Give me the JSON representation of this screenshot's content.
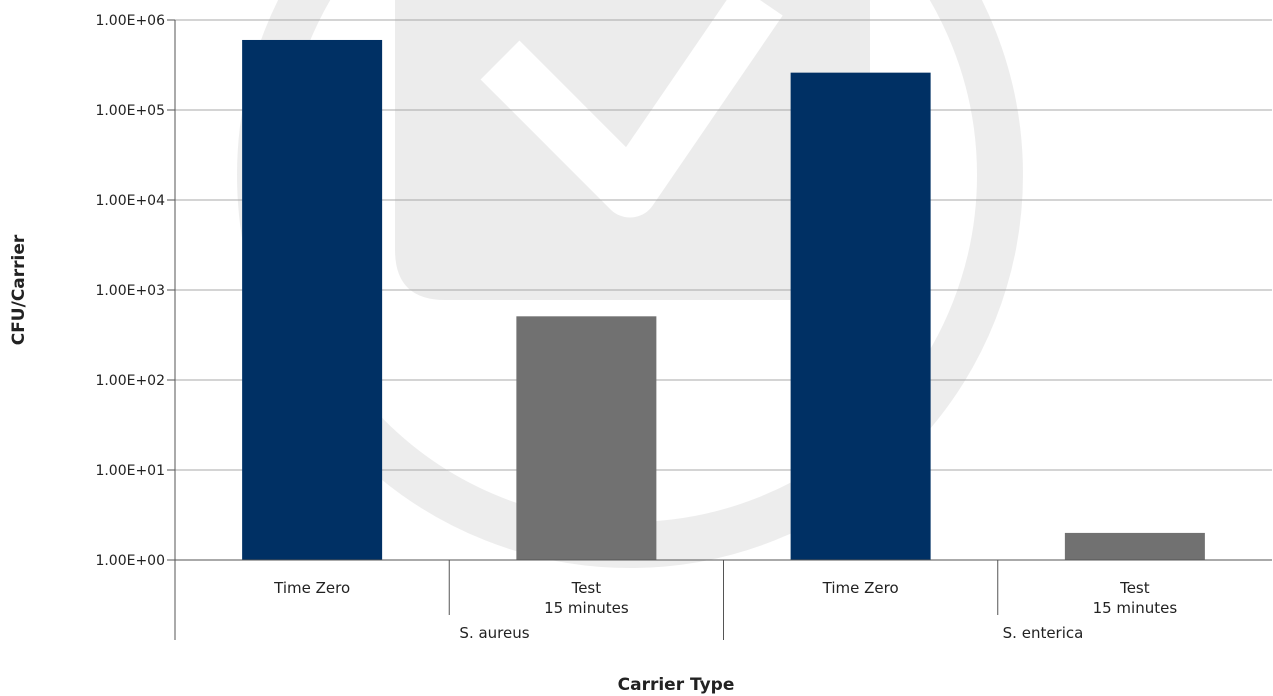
{
  "chart_data": {
    "type": "bar",
    "title": "",
    "xlabel": "Carrier Type",
    "ylabel": "CFU/Carrier",
    "yscale": "log",
    "ylim": [
      1,
      1000000
    ],
    "yticks": [
      1,
      10,
      100,
      1000,
      10000,
      100000,
      1000000
    ],
    "ytick_labels": [
      "1.00E+00",
      "1.00E+01",
      "1.00E+02",
      "1.00E+03",
      "1.00E+04",
      "1.00E+05",
      "1.00E+06"
    ],
    "grid": "horizontal",
    "legend": "none",
    "groups": [
      {
        "label": "S. aureus",
        "categories": [
          {
            "label_lines": [
              "Time Zero"
            ],
            "value": 600000,
            "color": "#003064"
          },
          {
            "label_lines": [
              "Test",
              "15 minutes"
            ],
            "value": 510,
            "color": "#717171"
          }
        ]
      },
      {
        "label": "S. enterica",
        "categories": [
          {
            "label_lines": [
              "Time Zero"
            ],
            "value": 260000,
            "color": "#003064"
          },
          {
            "label_lines": [
              "Test",
              "15 minutes"
            ],
            "value": 2,
            "color": "#717171"
          }
        ]
      }
    ]
  }
}
